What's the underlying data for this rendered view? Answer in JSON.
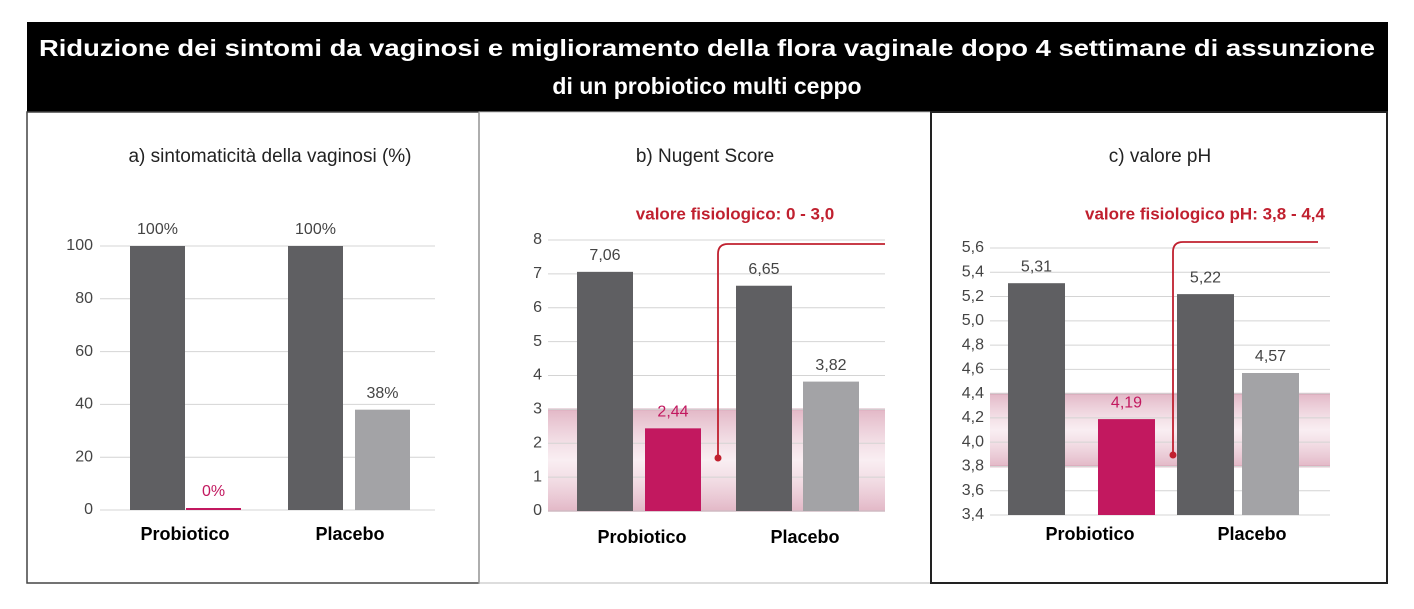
{
  "header": {
    "title": [
      "Riduzione dei sintomi da vaginosi e miglioramento della flora vaginale dopo 4 settimane di assunzione",
      "di un probiotico multi ceppo"
    ]
  },
  "chart_data": [
    {
      "type": "bar",
      "title": "a) sintomaticità della vaginosi (%)",
      "categories": [
        "Probiotico",
        "Placebo"
      ],
      "series": [
        {
          "color": "#5f5f62",
          "values": [
            100,
            100
          ],
          "value_labels": [
            "100%",
            "100%"
          ]
        },
        {
          "color": [
            "#c2185f",
            "#a3a3a6"
          ],
          "values": [
            0,
            38
          ],
          "value_labels": [
            "0%",
            "38%"
          ]
        }
      ],
      "ylim": [
        0,
        100
      ],
      "yticks": [
        0,
        20,
        40,
        60,
        80,
        100
      ],
      "grid": true
    },
    {
      "type": "bar",
      "title": "b) Nugent Score",
      "annotation": "valore fisiologico: 0 - 3,0",
      "reference_band": [
        0,
        3
      ],
      "annotation_color": "#c0202f",
      "categories": [
        "Probiotico",
        "Placebo"
      ],
      "series": [
        {
          "color": "#5f5f62",
          "values": [
            7.06,
            6.65
          ],
          "value_labels": [
            "7,06",
            "6,65"
          ]
        },
        {
          "color": [
            "#c2185f",
            "#a3a3a6"
          ],
          "values": [
            2.44,
            3.82
          ],
          "value_labels": [
            "2,44",
            "3,82"
          ]
        }
      ],
      "ylim": [
        0,
        8
      ],
      "yticks": [
        0,
        1,
        2,
        3,
        4,
        5,
        6,
        7,
        8
      ],
      "grid": true
    },
    {
      "type": "bar",
      "title": "c)  valore pH",
      "annotation": "valore fisiologico pH: 3,8 - 4,4",
      "reference_band": [
        3.8,
        4.4
      ],
      "annotation_color": "#c0202f",
      "categories": [
        "Probiotico",
        "Placebo"
      ],
      "series": [
        {
          "color": "#5f5f62",
          "values": [
            5.31,
            5.22
          ],
          "value_labels": [
            "5,31",
            "5,22"
          ]
        },
        {
          "color": [
            "#c2185f",
            "#a3a3a6"
          ],
          "values": [
            4.19,
            4.57
          ],
          "value_labels": [
            "4,19",
            "4,57"
          ]
        }
      ],
      "ylim": [
        3.4,
        5.6
      ],
      "yticks": [
        {
          "value": 3.4,
          "label": "3,4"
        },
        {
          "value": 3.6,
          "label": "3,6"
        },
        {
          "value": 3.8,
          "label": "3,8"
        },
        {
          "value": 4.0,
          "label": "4,0"
        },
        {
          "value": 4.2,
          "label": "4,2"
        },
        {
          "value": 4.4,
          "label": "4,4"
        },
        {
          "value": 4.6,
          "label": "4,6"
        },
        {
          "value": 4.8,
          "label": "4,8"
        },
        {
          "value": 5.0,
          "label": "5,0"
        },
        {
          "value": 5.2,
          "label": "5,2"
        },
        {
          "value": 5.4,
          "label": "5,4"
        },
        {
          "value": 5.6,
          "label": "5,6"
        }
      ],
      "grid": true
    }
  ]
}
